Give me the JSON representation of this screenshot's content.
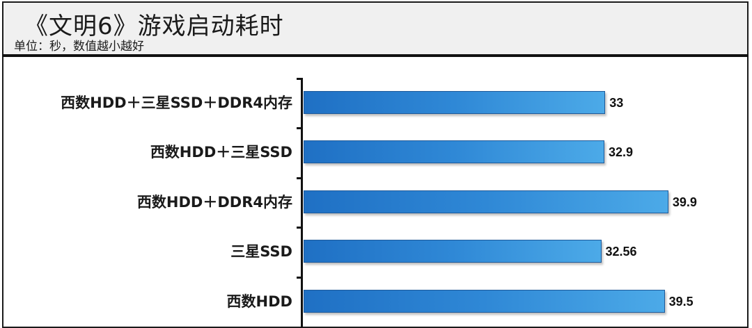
{
  "header": {
    "title": "《文明6》游戏启动耗时",
    "subtitle": "单位：秒，数值越小越好"
  },
  "colors": {
    "bar_gradient_start": "#1f70c4",
    "bar_gradient_end": "#4caae8",
    "bar_border": "#1e5a9a",
    "header_bg": "#f0f0f0",
    "frame": "#1a1a1a"
  },
  "chart_data": {
    "type": "bar",
    "orientation": "horizontal",
    "title": "《文明6》游戏启动耗时",
    "subtitle": "单位：秒，数值越小越好",
    "xlabel": "",
    "ylabel": "",
    "categories": [
      "西数HDD＋三星SSD＋DDR4内存",
      "西数HDD＋三星SSD",
      "西数HDD＋DDR4内存",
      "三星SSD",
      "西数HDD"
    ],
    "values": [
      33,
      32.9,
      39.9,
      32.56,
      39.5
    ],
    "value_labels": [
      "33",
      "32.9",
      "39.9",
      "32.56",
      "39.5"
    ],
    "xlim": [
      0,
      40
    ],
    "grid": false,
    "legend": null,
    "data_labels": true,
    "unit": "秒"
  }
}
